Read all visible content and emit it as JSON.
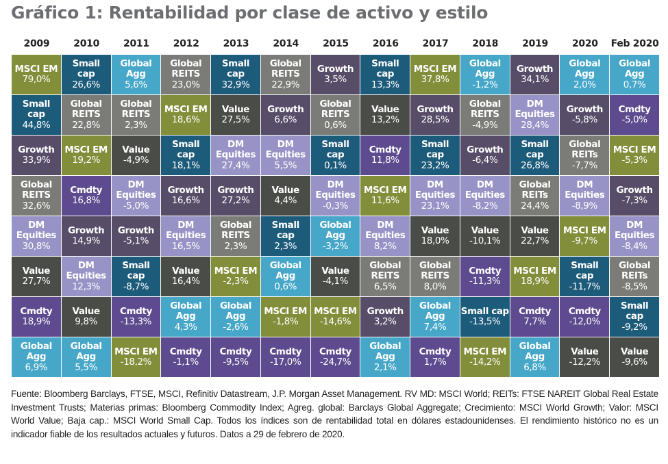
{
  "title": "Gráfico 1: Rentabilidad por clase de activo y estilo",
  "footer": "Fuente:  Bloomberg Barclays, FTSE, MSCI, Refinitiv Datastream, J.P. Morgan Asset Management.  RV MD:  MSCI World; REITs: FTSE NAREIT Global Real Estate Investment Trusts; Materias primas: Bloomberg Commodity Index; Agreg. global: Barclays Global Aggregate; Crecimiento: MSCI World Growth; Valor: MSCI World Value; Baja cap.: MSCI World Small Cap. Todos los índices son de rentabilidad total en dólares estadounidenses. El rendimiento histórico no es un indicador fiable de los resultados actuales y futuros. Datos a 29 de febrero de 2020.",
  "colors": {
    "MSCI EM": "#838e3a",
    "Small cap": "#1d5b7b",
    "Global Agg": "#46a7c9",
    "Global REITS": "#7b7b77",
    "Growth": "#574d68",
    "Value": "#4a4c47",
    "DM Equities": "#9893c6",
    "Cmdty": "#5e4a8e"
  },
  "chart_data": {
    "type": "table",
    "title": "Gráfico 1: Rentabilidad por clase de activo y estilo",
    "columns": [
      "2009",
      "2010",
      "2011",
      "2012",
      "2013",
      "2014",
      "2015",
      "2016",
      "2017",
      "2018",
      "2019",
      "2020",
      "Feb 2020"
    ],
    "ranked_cells": [
      [
        {
          "label": [
            "MSCI EM"
          ],
          "asset": "MSCI EM",
          "value": "79,0%"
        },
        {
          "label": [
            "Small",
            "cap"
          ],
          "asset": "Small cap",
          "value": "44,8%"
        },
        {
          "label": [
            "Growth"
          ],
          "asset": "Growth",
          "value": "33,9%"
        },
        {
          "label": [
            "Global",
            "REITS"
          ],
          "asset": "Global REITS",
          "value": "32,6%"
        },
        {
          "label": [
            "DM",
            "Equities"
          ],
          "asset": "DM Equities",
          "value": "30,8%"
        },
        {
          "label": [
            "Value"
          ],
          "asset": "Value",
          "value": "27,7%"
        },
        {
          "label": [
            "Cmdty"
          ],
          "asset": "Cmdty",
          "value": "18,9%"
        },
        {
          "label": [
            "Global",
            "Agg"
          ],
          "asset": "Global Agg",
          "value": "6,9%"
        }
      ],
      [
        {
          "label": [
            "Small",
            "cap"
          ],
          "asset": "Small cap",
          "value": "26,6%"
        },
        {
          "label": [
            "Global",
            "REITS"
          ],
          "asset": "Global REITS",
          "value": "22,8%"
        },
        {
          "label": [
            "MSCI EM"
          ],
          "asset": "MSCI EM",
          "value": "19,2%"
        },
        {
          "label": [
            "Cmdty"
          ],
          "asset": "Cmdty",
          "value": "16,8%"
        },
        {
          "label": [
            "Growth"
          ],
          "asset": "Growth",
          "value": "14,9%"
        },
        {
          "label": [
            "DM",
            "Equities"
          ],
          "asset": "DM Equities",
          "value": "12,3%"
        },
        {
          "label": [
            "Value"
          ],
          "asset": "Value",
          "value": "9,8%"
        },
        {
          "label": [
            "Global",
            "Agg"
          ],
          "asset": "Global Agg",
          "value": "5,5%"
        }
      ],
      [
        {
          "label": [
            "Global",
            "Agg"
          ],
          "asset": "Global Agg",
          "value": "5,6%"
        },
        {
          "label": [
            "Global",
            "REITS"
          ],
          "asset": "Global REITS",
          "value": "2,3%"
        },
        {
          "label": [
            "Value"
          ],
          "asset": "Value",
          "value": "-4,9%"
        },
        {
          "label": [
            "DM",
            "Equities"
          ],
          "asset": "DM Equities",
          "value": "-5,0%"
        },
        {
          "label": [
            "Growth"
          ],
          "asset": "Growth",
          "value": "-5,1%"
        },
        {
          "label": [
            "Small",
            "cap"
          ],
          "asset": "Small cap",
          "value": "-8,7%"
        },
        {
          "label": [
            "Cmdty"
          ],
          "asset": "Cmdty",
          "value": "-13,3%"
        },
        {
          "label": [
            "MSCI EM"
          ],
          "asset": "MSCI EM",
          "value": "-18,2%"
        }
      ],
      [
        {
          "label": [
            "Global",
            "REITS"
          ],
          "asset": "Global REITS",
          "value": "23,0%"
        },
        {
          "label": [
            "MSCI EM"
          ],
          "asset": "MSCI EM",
          "value": "18,6%"
        },
        {
          "label": [
            "Small",
            "cap"
          ],
          "asset": "Small cap",
          "value": "18,1%"
        },
        {
          "label": [
            "Growth"
          ],
          "asset": "Growth",
          "value": "16,6%"
        },
        {
          "label": [
            "DM",
            "Equities"
          ],
          "asset": "DM Equities",
          "value": "16,5%"
        },
        {
          "label": [
            "Value"
          ],
          "asset": "Value",
          "value": "16,4%"
        },
        {
          "label": [
            "Global",
            "Agg"
          ],
          "asset": "Global Agg",
          "value": "4,3%"
        },
        {
          "label": [
            "Cmdty"
          ],
          "asset": "Cmdty",
          "value": "-1,1%"
        }
      ],
      [
        {
          "label": [
            "Small",
            "cap"
          ],
          "asset": "Small cap",
          "value": "32,9%"
        },
        {
          "label": [
            "Value"
          ],
          "asset": "Value",
          "value": "27,5%"
        },
        {
          "label": [
            "DM",
            "Equities"
          ],
          "asset": "DM Equities",
          "value": "27,4%"
        },
        {
          "label": [
            "Growth"
          ],
          "asset": "Growth",
          "value": "27,2%"
        },
        {
          "label": [
            "Global",
            "REITS"
          ],
          "asset": "Global REITS",
          "value": "2,3%"
        },
        {
          "label": [
            "MSCI EM"
          ],
          "asset": "MSCI EM",
          "value": "-2,3%"
        },
        {
          "label": [
            "Global",
            "Agg"
          ],
          "asset": "Global Agg",
          "value": "-2,6%"
        },
        {
          "label": [
            "Cmdty"
          ],
          "asset": "Cmdty",
          "value": "-9,5%"
        }
      ],
      [
        {
          "label": [
            "Global",
            "REITS"
          ],
          "asset": "Global REITS",
          "value": "22,9%"
        },
        {
          "label": [
            "Growth"
          ],
          "asset": "Growth",
          "value": "6,6%"
        },
        {
          "label": [
            "DM",
            "Equities"
          ],
          "asset": "DM Equities",
          "value": "5,5%"
        },
        {
          "label": [
            "Value"
          ],
          "asset": "Value",
          "value": "4,4%"
        },
        {
          "label": [
            "Small",
            "cap"
          ],
          "asset": "Small cap",
          "value": "2,3%"
        },
        {
          "label": [
            "Global",
            "Agg"
          ],
          "asset": "Global Agg",
          "value": "0,6%"
        },
        {
          "label": [
            "MSCI EM"
          ],
          "asset": "MSCI EM",
          "value": "-1,8%"
        },
        {
          "label": [
            "Cmdty"
          ],
          "asset": "Cmdty",
          "value": "-17,0%"
        }
      ],
      [
        {
          "label": [
            "Growth"
          ],
          "asset": "Growth",
          "value": "3,5%"
        },
        {
          "label": [
            "Global",
            "REITS"
          ],
          "asset": "Global REITS",
          "value": "0,6%"
        },
        {
          "label": [
            "Small",
            "cap"
          ],
          "asset": "Small cap",
          "value": "0,1%"
        },
        {
          "label": [
            "DM",
            "Equities"
          ],
          "asset": "DM Equities",
          "value": "-0,3%"
        },
        {
          "label": [
            "Global",
            "Agg"
          ],
          "asset": "Global Agg",
          "value": "-3,2%"
        },
        {
          "label": [
            "Value"
          ],
          "asset": "Value",
          "value": "-4,1%"
        },
        {
          "label": [
            "MSCI EM"
          ],
          "asset": "MSCI EM",
          "value": "-14,6%"
        },
        {
          "label": [
            "Cmdty"
          ],
          "asset": "Cmdty",
          "value": "-24,7%"
        }
      ],
      [
        {
          "label": [
            "Small",
            "cap"
          ],
          "asset": "Small cap",
          "value": "13,3%"
        },
        {
          "label": [
            "Value"
          ],
          "asset": "Value",
          "value": "13,2%"
        },
        {
          "label": [
            "Cmdty"
          ],
          "asset": "Cmdty",
          "value": "11,8%"
        },
        {
          "label": [
            "MSCI EM"
          ],
          "asset": "MSCI EM",
          "value": "11,6%"
        },
        {
          "label": [
            "DM",
            "Equities"
          ],
          "asset": "DM Equities",
          "value": "8,2%"
        },
        {
          "label": [
            "Global",
            "REITS"
          ],
          "asset": "Global REITS",
          "value": "6,5%"
        },
        {
          "label": [
            "Growth"
          ],
          "asset": "Growth",
          "value": "3,2%"
        },
        {
          "label": [
            "Global",
            "Agg"
          ],
          "asset": "Global Agg",
          "value": "2,1%"
        }
      ],
      [
        {
          "label": [
            "MSCI EM"
          ],
          "asset": "MSCI EM",
          "value": "37,8%"
        },
        {
          "label": [
            "Growth"
          ],
          "asset": "Growth",
          "value": "28,5%"
        },
        {
          "label": [
            "Small",
            "cap"
          ],
          "asset": "Small cap",
          "value": "23,2%"
        },
        {
          "label": [
            "DM",
            "Equities"
          ],
          "asset": "DM Equities",
          "value": "23,1%"
        },
        {
          "label": [
            "Value"
          ],
          "asset": "Value",
          "value": "18,0%"
        },
        {
          "label": [
            "Global",
            "REITS"
          ],
          "asset": "Global REITS",
          "value": "8,0%"
        },
        {
          "label": [
            "Global",
            "Agg"
          ],
          "asset": "Global Agg",
          "value": "7,4%"
        },
        {
          "label": [
            "Cmdty"
          ],
          "asset": "Cmdty",
          "value": "1,7%"
        }
      ],
      [
        {
          "label": [
            "Global",
            "Agg"
          ],
          "asset": "Global Agg",
          "value": "-1,2%"
        },
        {
          "label": [
            "Global",
            "REITS"
          ],
          "asset": "Global REITS",
          "value": "-4,9%"
        },
        {
          "label": [
            "Growth"
          ],
          "asset": "Growth",
          "value": "-6,4%"
        },
        {
          "label": [
            "DM",
            "Equities"
          ],
          "asset": "DM Equities",
          "value": "-8,2%"
        },
        {
          "label": [
            "Value"
          ],
          "asset": "Value",
          "value": "-10,1%"
        },
        {
          "label": [
            "Cmdty"
          ],
          "asset": "Cmdty",
          "value": "-11,3%"
        },
        {
          "label": [
            "Small cap"
          ],
          "asset": "Small cap",
          "value": "-13,5%"
        },
        {
          "label": [
            "MSCI EM"
          ],
          "asset": "MSCI EM",
          "value": "-14,2%"
        }
      ],
      [
        {
          "label": [
            "Growth"
          ],
          "asset": "Growth",
          "value": "34,1%"
        },
        {
          "label": [
            "DM",
            "Equities"
          ],
          "asset": "DM Equities",
          "value": "28,4%"
        },
        {
          "label": [
            "Small",
            "cap"
          ],
          "asset": "Small cap",
          "value": "26,8%"
        },
        {
          "label": [
            "Global",
            "REITs"
          ],
          "asset": "Global REITS",
          "value": "24,4%"
        },
        {
          "label": [
            "Value"
          ],
          "asset": "Value",
          "value": "22,7%"
        },
        {
          "label": [
            "MSCI EM"
          ],
          "asset": "MSCI EM",
          "value": "18,9%"
        },
        {
          "label": [
            "Cmdty"
          ],
          "asset": "Cmdty",
          "value": "7,7%"
        },
        {
          "label": [
            "Global",
            "Agg"
          ],
          "asset": "Global Agg",
          "value": "6,8%"
        }
      ],
      [
        {
          "label": [
            "Global",
            "Agg"
          ],
          "asset": "Global Agg",
          "value": "2,0%"
        },
        {
          "label": [
            "Growth"
          ],
          "asset": "Growth",
          "value": "-5,8%"
        },
        {
          "label": [
            "Global",
            "REITs"
          ],
          "asset": "Global REITS",
          "value": "-7,7%"
        },
        {
          "label": [
            "DM",
            "Equities"
          ],
          "asset": "DM Equities",
          "value": "-8,9%"
        },
        {
          "label": [
            "MSCI EM"
          ],
          "asset": "MSCI EM",
          "value": "-9,7%"
        },
        {
          "label": [
            "Small",
            "cap"
          ],
          "asset": "Small cap",
          "value": "-11,7%"
        },
        {
          "label": [
            "Cmdty"
          ],
          "asset": "Cmdty",
          "value": "-12,0%"
        },
        {
          "label": [
            "Value"
          ],
          "asset": "Value",
          "value": "-12,2%"
        }
      ],
      [
        {
          "label": [
            "Global",
            "Agg"
          ],
          "asset": "Global Agg",
          "value": "0,7%"
        },
        {
          "label": [
            "Cmdty"
          ],
          "asset": "Cmdty",
          "value": "-5,0%"
        },
        {
          "label": [
            "MSCI EM"
          ],
          "asset": "MSCI EM",
          "value": "-5,3%"
        },
        {
          "label": [
            "Growth"
          ],
          "asset": "Growth",
          "value": "-7,3%"
        },
        {
          "label": [
            "DM",
            "Equities"
          ],
          "asset": "DM Equities",
          "value": "-8,4%"
        },
        {
          "label": [
            "Global",
            "REITs"
          ],
          "asset": "Global REITS",
          "value": "-8,5%"
        },
        {
          "label": [
            "Small",
            "cap"
          ],
          "asset": "Small cap",
          "value": "-9,2%"
        },
        {
          "label": [
            "Value"
          ],
          "asset": "Value",
          "value": "-9,6%"
        }
      ]
    ]
  }
}
